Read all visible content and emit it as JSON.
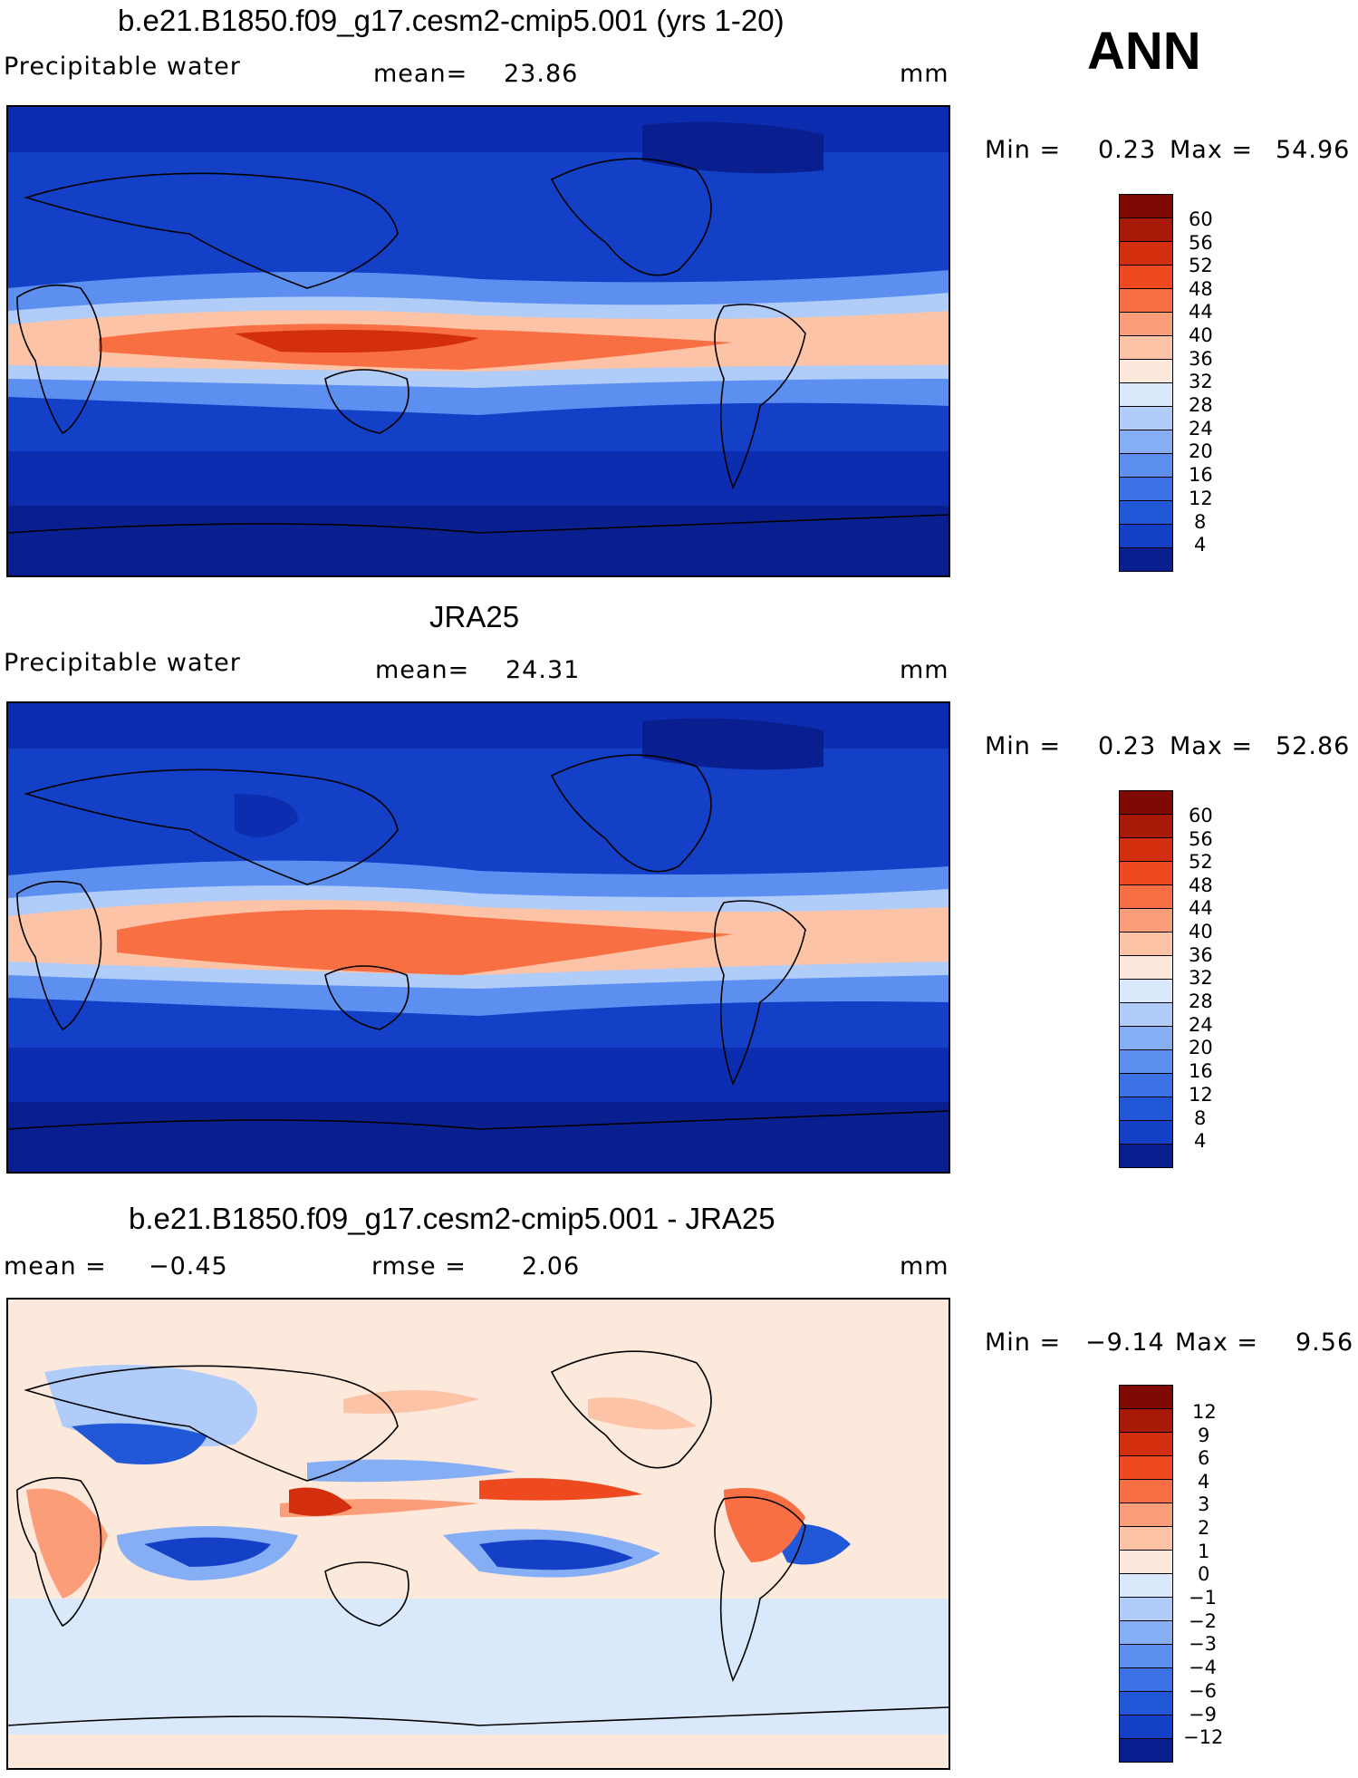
{
  "season": "ANN",
  "colors": {
    "outline": "#000000",
    "abs_scale": [
      "#0a1f8f",
      "#0c2db0",
      "#1340c7",
      "#2158d8",
      "#3a72e6",
      "#5c8ff0",
      "#86aef5",
      "#b0ccf8",
      "#d9e8fb",
      "#fde8dc",
      "#fcc3a7",
      "#fb9d78",
      "#f86f43",
      "#ef4a1f",
      "#d32f0e",
      "#a81a08",
      "#7f0a03"
    ],
    "diff_scale": [
      "#0a1f8f",
      "#0c2db0",
      "#1340c7",
      "#2158d8",
      "#3a72e6",
      "#5c8ff0",
      "#86aef5",
      "#b0ccf8",
      "#d9e8fb",
      "#fde8dc",
      "#fcc3a7",
      "#fb9d78",
      "#f86f43",
      "#ef4a1f",
      "#d32f0e",
      "#a81a08",
      "#7f0a03"
    ]
  },
  "panels": [
    {
      "id": "model",
      "title": "b.e21.B1850.f09_g17.cesm2-cmip5.001 (yrs 1-20)",
      "variable": "Precipitable water",
      "stat_label": "mean=",
      "stat_value": "23.86",
      "units": "mm",
      "min_label": "Min =",
      "min_value": "0.23",
      "max_label": "Max =",
      "max_value": "54.96"
    },
    {
      "id": "obs",
      "title": "JRA25",
      "variable": "Precipitable water",
      "stat_label": "mean=",
      "stat_value": "24.31",
      "units": "mm",
      "min_label": "Min =",
      "min_value": "0.23",
      "max_label": "Max =",
      "max_value": "52.86"
    },
    {
      "id": "diff",
      "title": "b.e21.B1850.f09_g17.cesm2-cmip5.001 - JRA25",
      "mean_label": "mean =",
      "mean_value": "−0.45",
      "rmse_label": "rmse =",
      "rmse_value": "2.06",
      "units": "mm",
      "min_label": "Min =",
      "min_value": "−9.14",
      "max_label": "Max =",
      "max_value": "9.56"
    }
  ],
  "abs_ticks": [
    "60",
    "56",
    "52",
    "48",
    "44",
    "40",
    "36",
    "32",
    "28",
    "24",
    "20",
    "16",
    "12",
    "8",
    "4"
  ],
  "diff_ticks": [
    "12",
    "9",
    "6",
    "4",
    "3",
    "2",
    "1",
    "0",
    "−1",
    "−2",
    "−3",
    "−4",
    "−6",
    "−9",
    "−12"
  ]
}
